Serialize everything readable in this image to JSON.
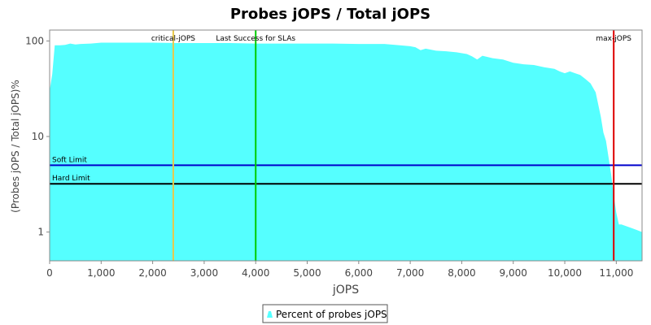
{
  "chart_data": {
    "type": "area",
    "title": "Probes jOPS / Total jOPS",
    "xlabel": "jOPS",
    "ylabel": "(Probes jOPS / Total jOPS)%",
    "xlim": [
      0,
      11500
    ],
    "ylim": [
      0.5,
      130
    ],
    "yscale": "log",
    "grid": false,
    "legend_position": "bottom",
    "x_ticks": [
      0,
      1000,
      2000,
      3000,
      4000,
      5000,
      6000,
      7000,
      8000,
      9000,
      10000,
      11000
    ],
    "x_tick_labels": [
      "0",
      "1,000",
      "2,000",
      "3,000",
      "4,000",
      "5,000",
      "6,000",
      "7,000",
      "8,000",
      "9,000",
      "10,000",
      "11,000"
    ],
    "y_ticks": [
      1,
      10,
      100
    ],
    "y_tick_labels": [
      "1",
      "10",
      "100"
    ],
    "series": [
      {
        "name": "Percent of probes jOPS",
        "color": "#55ffff",
        "x": [
          0,
          50,
          100,
          200,
          300,
          400,
          500,
          600,
          800,
          1000,
          1200,
          1500,
          2000,
          2500,
          3000,
          3500,
          4000,
          4500,
          5000,
          5500,
          6000,
          6500,
          6800,
          7000,
          7100,
          7200,
          7300,
          7500,
          7700,
          7900,
          8100,
          8200,
          8300,
          8400,
          8600,
          8800,
          9000,
          9200,
          9400,
          9600,
          9800,
          9900,
          10000,
          10100,
          10200,
          10300,
          10400,
          10500,
          10600,
          10700,
          10750,
          10800,
          10850,
          10900,
          10950,
          11000,
          11050,
          11100,
          11200,
          11300,
          11400,
          11500
        ],
        "values": [
          30,
          45,
          90,
          90,
          91,
          94,
          92,
          93,
          94,
          96,
          96,
          96,
          96,
          95,
          95,
          95,
          94,
          94,
          94,
          94,
          93,
          93,
          90,
          88,
          86,
          80,
          83,
          79,
          78,
          76,
          73,
          69,
          64,
          70,
          66,
          64,
          59,
          57,
          56,
          53,
          51,
          48,
          46,
          48,
          46,
          44,
          40,
          36,
          29,
          16,
          11,
          9,
          6,
          4,
          2.4,
          1.6,
          1.2,
          1.2,
          1.15,
          1.1,
          1.05,
          1.0
        ]
      }
    ],
    "markers": [
      {
        "label": "critical-jOPS",
        "x": 2400,
        "color": "#e8c84a"
      },
      {
        "label": "Last Success for SLAs",
        "x": 4000,
        "color": "#00cc00"
      },
      {
        "label": "max-jOPS",
        "x": 10950,
        "color": "#dd0000"
      }
    ],
    "limits": [
      {
        "label": "Soft Limit",
        "y": 5,
        "color": "#0000cc"
      },
      {
        "label": "Hard Limit",
        "y": 3.2,
        "color": "#000000"
      }
    ]
  }
}
